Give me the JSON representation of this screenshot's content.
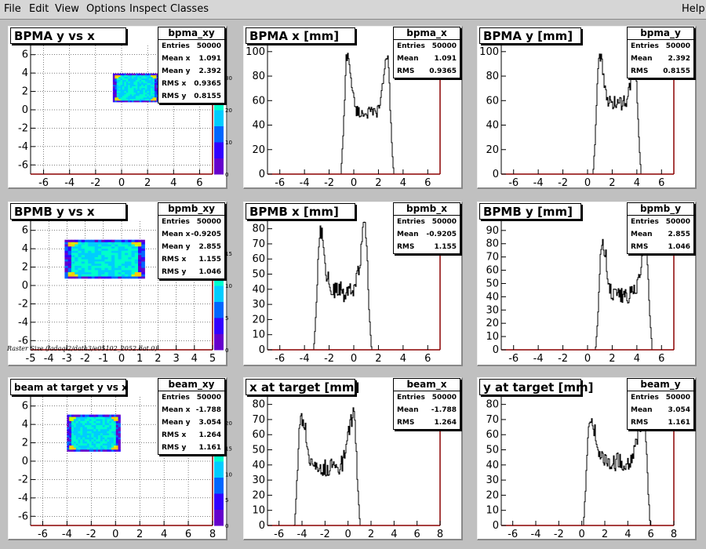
{
  "menu": {
    "file": "File",
    "edit": "Edit",
    "view": "View",
    "options": "Options",
    "inspect": "Inspect",
    "classes": "Classes",
    "help": "Help"
  },
  "raster_label": "Raster Size (/adaql2/data3/e05102_2052.dat.0)",
  "colors": {
    "hist_line": "#000000",
    "axis_frame": "#8b0000",
    "grid": "#000000",
    "palette": [
      "#6600cc",
      "#3300ff",
      "#0066ff",
      "#00ccff",
      "#00ffcc",
      "#66ff66",
      "#ccff00",
      "#ffcc00"
    ]
  },
  "pads": [
    {
      "id": "bpma_xy",
      "type": "scatter2d",
      "title": "BPMA y vs x",
      "stat_name": "bpma_xy",
      "stats": [
        [
          "Entries",
          "50000"
        ],
        [
          "Mean x",
          "1.091"
        ],
        [
          "Mean y",
          "2.392"
        ],
        [
          "RMS x",
          "0.9365"
        ],
        [
          "RMS y",
          "0.8155"
        ]
      ],
      "xlim": [
        -7,
        7
      ],
      "ylim": [
        -7,
        7
      ],
      "xticks": [
        -6,
        -4,
        -2,
        0,
        2,
        4,
        6
      ],
      "yticks": [
        -6,
        -4,
        -2,
        0,
        2,
        4,
        6
      ],
      "palette_ticks": [
        "0",
        "10",
        "20",
        "30"
      ],
      "palette_max": 40,
      "blob": {
        "cx": 1.09,
        "cy": 2.39,
        "hw": 1.75,
        "hh": 1.55
      }
    },
    {
      "id": "bpma_x",
      "type": "hist",
      "title": "BPMA x [mm]",
      "stat_name": "bpma_x",
      "stats": [
        [
          "Entries",
          "50000"
        ],
        [
          "Mean",
          "1.091"
        ],
        [
          "RMS",
          "0.9365"
        ]
      ],
      "xlim": [
        -7,
        7
      ],
      "ylim": [
        0,
        105
      ],
      "xticks": [
        -6,
        -4,
        -2,
        0,
        2,
        4,
        6
      ],
      "yticks": [
        0,
        20,
        40,
        60,
        80,
        100
      ],
      "shape": {
        "lo": -0.7,
        "hi": 2.9,
        "edge_peak": 97,
        "mid": 50,
        "noise": 10
      }
    },
    {
      "id": "bpma_y",
      "type": "hist",
      "title": "BPMA y [mm]",
      "stat_name": "bpma_y",
      "stats": [
        [
          "Entries",
          "50000"
        ],
        [
          "Mean",
          "2.392"
        ],
        [
          "RMS",
          "0.8155"
        ]
      ],
      "xlim": [
        -7,
        7
      ],
      "ylim": [
        0,
        105
      ],
      "xticks": [
        -6,
        -4,
        -2,
        0,
        2,
        4,
        6
      ],
      "yticks": [
        0,
        20,
        40,
        60,
        80,
        100
      ],
      "shape": {
        "lo": 0.8,
        "hi": 4.0,
        "edge_peak": 100,
        "mid": 58,
        "noise": 12
      }
    },
    {
      "id": "bpmb_xy",
      "type": "scatter2d",
      "title": "BPMB y vs x",
      "stat_name": "bpmb_xy",
      "stats": [
        [
          "Entries",
          "50000"
        ],
        [
          "Mean x",
          "-0.9205"
        ],
        [
          "Mean y",
          "2.855"
        ],
        [
          "RMS x",
          "1.155"
        ],
        [
          "RMS y",
          "1.046"
        ]
      ],
      "xlim": [
        -5,
        5
      ],
      "ylim": [
        -7,
        7
      ],
      "xticks": [
        -5,
        -4,
        -3,
        -2,
        -1,
        0,
        1,
        2,
        3,
        4,
        5
      ],
      "yticks": [
        -6,
        -4,
        -2,
        0,
        2,
        4,
        6
      ],
      "palette_ticks": [
        "0",
        "5",
        "10",
        "15"
      ],
      "palette_max": 20,
      "blob": {
        "cx": -0.92,
        "cy": 2.86,
        "hw": 2.2,
        "hh": 2.1
      }
    },
    {
      "id": "bpmb_x",
      "type": "hist",
      "title": "BPMB x [mm]",
      "stat_name": "bpmb_x",
      "stats": [
        [
          "Entries",
          "50000"
        ],
        [
          "Mean",
          "-0.9205"
        ],
        [
          "RMS",
          "1.155"
        ]
      ],
      "xlim": [
        -7,
        7
      ],
      "ylim": [
        0,
        85
      ],
      "xticks": [
        -6,
        -4,
        -2,
        0,
        2,
        4,
        6
      ],
      "yticks": [
        0,
        10,
        20,
        30,
        40,
        50,
        60,
        70,
        80
      ],
      "shape": {
        "lo": -2.9,
        "hi": 1.1,
        "edge_peak": 80,
        "mid": 38,
        "noise": 14
      }
    },
    {
      "id": "bpmb_y",
      "type": "hist",
      "title": "BPMB y [mm]",
      "stat_name": "bpmb_y",
      "stats": [
        [
          "Entries",
          "50000"
        ],
        [
          "Mean",
          "2.855"
        ],
        [
          "RMS",
          "1.046"
        ]
      ],
      "xlim": [
        -7,
        7
      ],
      "ylim": [
        0,
        97
      ],
      "xticks": [
        -6,
        -4,
        -2,
        0,
        2,
        4,
        6
      ],
      "yticks": [
        0,
        10,
        20,
        30,
        40,
        50,
        60,
        70,
        80,
        90
      ],
      "shape": {
        "lo": 1.0,
        "hi": 4.9,
        "edge_peak": 82,
        "mid": 42,
        "noise": 14
      }
    },
    {
      "id": "beam_xy",
      "type": "scatter2d",
      "title": "beam at target y vs x",
      "stat_name": "beam_xy",
      "stats": [
        [
          "Entries",
          "50000"
        ],
        [
          "Mean x",
          "-1.788"
        ],
        [
          "Mean y",
          "3.054"
        ],
        [
          "RMS x",
          "1.264"
        ],
        [
          "RMS y",
          "1.161"
        ]
      ],
      "xlim": [
        -7,
        8
      ],
      "ylim": [
        -7,
        7
      ],
      "xticks": [
        -6,
        -4,
        -2,
        0,
        2,
        4,
        6,
        8
      ],
      "yticks": [
        -6,
        -4,
        -2,
        0,
        2,
        4,
        6
      ],
      "palette_ticks": [
        "0",
        "5",
        "10",
        "15",
        "20"
      ],
      "palette_max": 25,
      "blob": {
        "cx": -1.79,
        "cy": 3.05,
        "hw": 2.2,
        "hh": 2.0
      }
    },
    {
      "id": "beam_x",
      "type": "hist",
      "title": "x at target [mm]",
      "stat_name": "beam_x",
      "stats": [
        [
          "Entries",
          "50000"
        ],
        [
          "Mean",
          "-1.788"
        ],
        [
          "RMS",
          "1.264"
        ]
      ],
      "xlim": [
        -7,
        8
      ],
      "ylim": [
        0,
        85
      ],
      "xticks": [
        -6,
        -4,
        -2,
        0,
        2,
        4,
        6,
        8
      ],
      "yticks": [
        0,
        10,
        20,
        30,
        40,
        50,
        60,
        70,
        80
      ],
      "shape": {
        "lo": -4.3,
        "hi": 0.7,
        "edge_peak": 72,
        "mid": 38,
        "noise": 12
      }
    },
    {
      "id": "beam_y",
      "type": "hist",
      "title": "y at target [mm]",
      "stat_name": "beam_y",
      "stats": [
        [
          "Entries",
          "50000"
        ],
        [
          "Mean",
          "3.054"
        ],
        [
          "RMS",
          "1.161"
        ]
      ],
      "xlim": [
        -7,
        8
      ],
      "ylim": [
        0,
        85
      ],
      "xticks": [
        -6,
        -4,
        -2,
        0,
        2,
        4,
        6,
        8
      ],
      "yticks": [
        0,
        10,
        20,
        30,
        40,
        50,
        60,
        70,
        80
      ],
      "shape": {
        "lo": 0.5,
        "hi": 5.6,
        "edge_peak": 72,
        "mid": 42,
        "noise": 12
      }
    }
  ],
  "chart_data": [
    {
      "type": "heatmap",
      "title": "BPMA y vs x",
      "xlim": [
        -7,
        7
      ],
      "ylim": [
        -7,
        7
      ],
      "grid": true,
      "entries": 50000,
      "mean_x": 1.091,
      "mean_y": 2.392,
      "rms_x": 0.9365,
      "rms_y": 0.8155
    },
    {
      "type": "bar",
      "title": "BPMA x [mm]",
      "xlim": [
        -7,
        7
      ],
      "ylim": [
        0,
        105
      ],
      "entries": 50000,
      "mean": 1.091,
      "rms": 0.9365
    },
    {
      "type": "bar",
      "title": "BPMA y [mm]",
      "xlim": [
        -7,
        7
      ],
      "ylim": [
        0,
        105
      ],
      "entries": 50000,
      "mean": 2.392,
      "rms": 0.8155
    },
    {
      "type": "heatmap",
      "title": "BPMB y vs x",
      "xlim": [
        -5,
        5
      ],
      "ylim": [
        -7,
        7
      ],
      "grid": true,
      "entries": 50000,
      "mean_x": -0.9205,
      "mean_y": 2.855,
      "rms_x": 1.155,
      "rms_y": 1.046
    },
    {
      "type": "bar",
      "title": "BPMB x [mm]",
      "xlim": [
        -7,
        7
      ],
      "ylim": [
        0,
        85
      ],
      "entries": 50000,
      "mean": -0.9205,
      "rms": 1.155
    },
    {
      "type": "bar",
      "title": "BPMB y [mm]",
      "xlim": [
        -7,
        7
      ],
      "ylim": [
        0,
        97
      ],
      "entries": 50000,
      "mean": 2.855,
      "rms": 1.046
    },
    {
      "type": "heatmap",
      "title": "beam at target y vs x",
      "xlim": [
        -7,
        8
      ],
      "ylim": [
        -7,
        7
      ],
      "grid": true,
      "entries": 50000,
      "mean_x": -1.788,
      "mean_y": 3.054,
      "rms_x": 1.264,
      "rms_y": 1.161
    },
    {
      "type": "bar",
      "title": "x at target [mm]",
      "xlim": [
        -7,
        8
      ],
      "ylim": [
        0,
        85
      ],
      "entries": 50000,
      "mean": -1.788,
      "rms": 1.264
    },
    {
      "type": "bar",
      "title": "y at target [mm]",
      "xlim": [
        -7,
        8
      ],
      "ylim": [
        0,
        85
      ],
      "entries": 50000,
      "mean": 3.054,
      "rms": 1.161
    }
  ]
}
